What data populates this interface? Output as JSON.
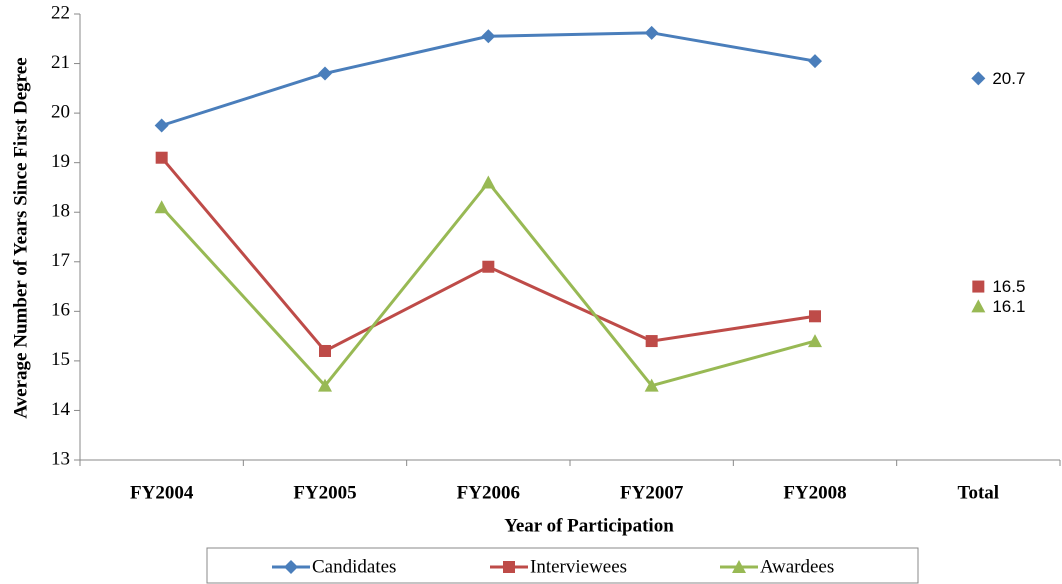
{
  "chart_data": {
    "type": "line",
    "x_label": "Year of Participation",
    "y_label": "Average Number of Years Since First Degree",
    "categories": [
      "FY2004",
      "FY2005",
      "FY2006",
      "FY2007",
      "FY2008"
    ],
    "total_label": "Total",
    "ylim": [
      13,
      22
    ],
    "yticks": [
      13,
      14,
      15,
      16,
      17,
      18,
      19,
      20,
      21,
      22
    ],
    "grid": false,
    "series": [
      {
        "name": "Candidates",
        "color": "#4a7ebb",
        "marker": "diamond",
        "values": [
          19.75,
          20.8,
          21.55,
          21.62,
          21.05
        ],
        "total": 20.7
      },
      {
        "name": "Interviewees",
        "color": "#be4b48",
        "marker": "square",
        "values": [
          19.1,
          15.2,
          16.9,
          15.4,
          15.9
        ],
        "total": 16.5
      },
      {
        "name": "Awardees",
        "color": "#98b954",
        "marker": "triangle",
        "values": [
          18.1,
          14.5,
          18.6,
          14.5,
          15.4
        ],
        "total": 16.1
      }
    ]
  }
}
